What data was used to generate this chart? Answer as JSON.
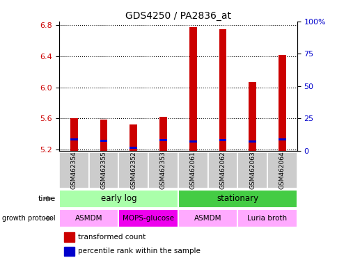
{
  "title": "GDS4250 / PA2836_at",
  "samples": [
    "GSM462354",
    "GSM462355",
    "GSM462352",
    "GSM462353",
    "GSM462061",
    "GSM462062",
    "GSM462063",
    "GSM462064"
  ],
  "red_values": [
    5.6,
    5.58,
    5.52,
    5.62,
    6.78,
    6.75,
    6.07,
    6.42
  ],
  "blue_values": [
    5.33,
    5.31,
    5.22,
    5.32,
    5.3,
    5.32,
    5.3,
    5.33
  ],
  "base_value": 5.18,
  "ylim": [
    5.18,
    6.85
  ],
  "yticks_left": [
    5.2,
    5.6,
    6.0,
    6.4,
    6.8
  ],
  "yticks_right_labels": [
    "0",
    "25",
    "50",
    "75",
    "100%"
  ],
  "bar_width": 0.25,
  "red_color": "#cc0000",
  "blue_color": "#0000cc",
  "time_groups": [
    {
      "label": "early log",
      "start": 0,
      "end": 4,
      "color": "#aaffaa"
    },
    {
      "label": "stationary",
      "start": 4,
      "end": 8,
      "color": "#44cc44"
    }
  ],
  "protocol_groups": [
    {
      "label": "ASMDM",
      "start": 0,
      "end": 2,
      "color": "#ffaaff"
    },
    {
      "label": "MOPS-glucose",
      "start": 2,
      "end": 4,
      "color": "#ee00ee"
    },
    {
      "label": "ASMDM",
      "start": 4,
      "end": 6,
      "color": "#ffaaff"
    },
    {
      "label": "Luria broth",
      "start": 6,
      "end": 8,
      "color": "#ffaaff"
    }
  ],
  "left_axis_color": "#cc0000",
  "right_axis_color": "#0000cc",
  "sample_box_color": "#cccccc",
  "fig_width": 4.85,
  "fig_height": 3.84,
  "dpi": 100
}
